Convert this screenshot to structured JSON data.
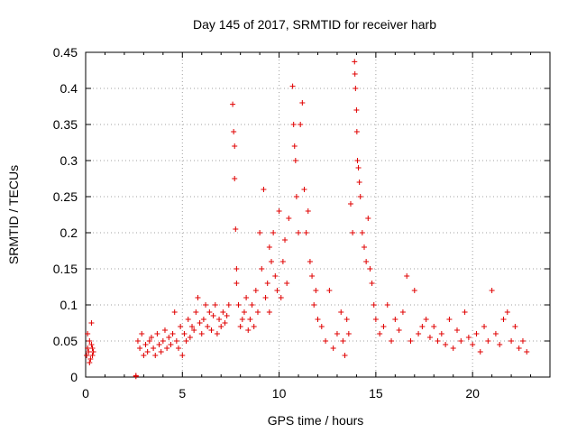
{
  "chart_data": {
    "type": "scatter",
    "title": "Day 145 of 2017, SRMTID for receiver harb",
    "xlabel": "GPS time / hours",
    "ylabel": "SRMTID / TECUs",
    "xlim": [
      0,
      24
    ],
    "ylim": [
      0,
      0.45
    ],
    "x_ticks": [
      0,
      5,
      10,
      15,
      20
    ],
    "x_tick_labels": [
      "0",
      "5",
      "10",
      "15",
      "20"
    ],
    "y_ticks": [
      0,
      0.05,
      0.1,
      0.15,
      0.2,
      0.25,
      0.3,
      0.35,
      0.4,
      0.45
    ],
    "y_tick_labels": [
      "0",
      "0.05",
      "0.1",
      "0.15",
      "0.2",
      "0.25",
      "0.3",
      "0.35",
      "0.4",
      "0.45"
    ],
    "grid": true,
    "marker": "+",
    "color": "#e00000",
    "series": [
      {
        "name": "SRMTID",
        "x": [
          0.05,
          0.1,
          0.15,
          0.2,
          0.25,
          0.3,
          0.35,
          0.4,
          0.1,
          0.2,
          0.3,
          0.35,
          2.6,
          2.6,
          2.7,
          2.8,
          2.9,
          3.0,
          3.1,
          3.2,
          3.3,
          3.4,
          3.5,
          3.6,
          3.7,
          3.8,
          3.9,
          4.0,
          4.1,
          4.2,
          4.3,
          4.4,
          4.5,
          4.6,
          4.7,
          4.8,
          4.9,
          5.0,
          5.1,
          5.2,
          5.3,
          5.4,
          5.5,
          5.6,
          5.7,
          5.8,
          5.9,
          6.0,
          6.1,
          6.2,
          6.3,
          6.4,
          6.5,
          6.6,
          6.7,
          6.8,
          6.9,
          7.0,
          7.1,
          7.2,
          7.3,
          7.4,
          7.6,
          7.65,
          7.7,
          7.7,
          7.75,
          7.8,
          7.8,
          7.9,
          8.0,
          8.1,
          8.2,
          8.3,
          8.4,
          8.5,
          8.6,
          8.7,
          8.8,
          8.9,
          9.0,
          9.1,
          9.2,
          9.3,
          9.4,
          9.5,
          9.5,
          9.6,
          9.7,
          9.8,
          9.9,
          10.0,
          10.1,
          10.2,
          10.3,
          10.4,
          10.5,
          10.7,
          10.75,
          10.8,
          10.85,
          10.9,
          11.0,
          11.1,
          11.2,
          11.3,
          11.4,
          11.5,
          11.6,
          11.7,
          11.8,
          11.9,
          12.0,
          12.2,
          12.4,
          12.6,
          12.8,
          13.0,
          13.2,
          13.3,
          13.4,
          13.5,
          13.6,
          13.7,
          13.8,
          13.9,
          13.92,
          13.95,
          14.0,
          14.02,
          14.05,
          14.1,
          14.15,
          14.2,
          14.3,
          14.4,
          14.5,
          14.6,
          14.7,
          14.8,
          14.9,
          15.0,
          15.2,
          15.4,
          15.6,
          15.8,
          16.0,
          16.2,
          16.4,
          16.6,
          16.8,
          17.0,
          17.2,
          17.4,
          17.6,
          17.8,
          18.0,
          18.2,
          18.4,
          18.6,
          18.8,
          19.0,
          19.2,
          19.4,
          19.6,
          19.8,
          20.0,
          20.2,
          20.4,
          20.6,
          20.8,
          21.0,
          21.2,
          21.4,
          21.6,
          21.8,
          22.0,
          22.2,
          22.4,
          22.6,
          22.8
        ],
        "y": [
          0.03,
          0.04,
          0.035,
          0.05,
          0.025,
          0.045,
          0.04,
          0.035,
          0.06,
          0.02,
          0.075,
          0.03,
          0.001,
          0.002,
          0.05,
          0.04,
          0.06,
          0.03,
          0.045,
          0.035,
          0.05,
          0.055,
          0.04,
          0.03,
          0.06,
          0.045,
          0.035,
          0.05,
          0.065,
          0.04,
          0.055,
          0.045,
          0.06,
          0.09,
          0.05,
          0.04,
          0.07,
          0.03,
          0.06,
          0.05,
          0.08,
          0.055,
          0.07,
          0.065,
          0.09,
          0.11,
          0.075,
          0.06,
          0.08,
          0.1,
          0.07,
          0.09,
          0.065,
          0.085,
          0.1,
          0.06,
          0.08,
          0.07,
          0.09,
          0.075,
          0.085,
          0.1,
          0.378,
          0.34,
          0.32,
          0.275,
          0.205,
          0.15,
          0.13,
          0.1,
          0.07,
          0.08,
          0.09,
          0.11,
          0.065,
          0.08,
          0.1,
          0.07,
          0.12,
          0.09,
          0.2,
          0.15,
          0.26,
          0.11,
          0.13,
          0.18,
          0.09,
          0.16,
          0.2,
          0.14,
          0.12,
          0.23,
          0.11,
          0.16,
          0.19,
          0.13,
          0.22,
          0.403,
          0.35,
          0.32,
          0.3,
          0.25,
          0.2,
          0.35,
          0.38,
          0.26,
          0.2,
          0.23,
          0.16,
          0.14,
          0.1,
          0.12,
          0.08,
          0.07,
          0.05,
          0.12,
          0.04,
          0.06,
          0.09,
          0.05,
          0.03,
          0.08,
          0.06,
          0.24,
          0.2,
          0.437,
          0.42,
          0.4,
          0.37,
          0.34,
          0.3,
          0.29,
          0.27,
          0.25,
          0.2,
          0.18,
          0.16,
          0.22,
          0.15,
          0.13,
          0.1,
          0.08,
          0.06,
          0.07,
          0.1,
          0.05,
          0.08,
          0.065,
          0.09,
          0.14,
          0.05,
          0.12,
          0.06,
          0.07,
          0.08,
          0.055,
          0.07,
          0.05,
          0.06,
          0.045,
          0.08,
          0.04,
          0.065,
          0.05,
          0.09,
          0.055,
          0.045,
          0.06,
          0.035,
          0.07,
          0.05,
          0.12,
          0.06,
          0.045,
          0.08,
          0.09,
          0.05,
          0.07,
          0.04,
          0.05,
          0.035
        ]
      }
    ]
  }
}
